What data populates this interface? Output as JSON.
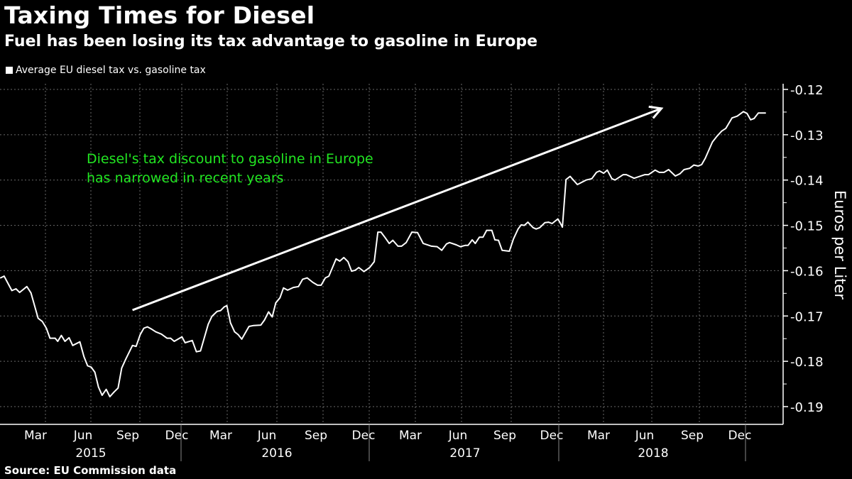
{
  "header": {
    "title": "Taxing Times for Diesel",
    "subtitle": "Fuel has been losing its tax advantage to gasoline in Europe"
  },
  "legend": {
    "label": "Average EU diesel tax vs. gasoline tax",
    "color": "#ffffff"
  },
  "annotation": {
    "lines": [
      "Diesel's tax discount to gasoline in Europe",
      "has narrowed in recent years"
    ],
    "color": "#22e622",
    "arrow": {
      "from": [
        "2015-09-28",
        -0.1687
      ],
      "to": [
        "2018-07-20",
        -0.1242
      ]
    }
  },
  "source": "Source: EU Commission data",
  "chart_data": {
    "type": "line",
    "title": "Taxing Times for Diesel",
    "subtitle": "Fuel has been losing its tax advantage to gasoline in Europe",
    "xlabel": "",
    "ylabel": "Euros per Liter",
    "ylim": [
      -0.19,
      -0.12
    ],
    "xlim": [
      "2015-01-14",
      "2019-03-09"
    ],
    "y_ticks": [
      "-0.12",
      "-0.13",
      "-0.14",
      "-0.15",
      "-0.16",
      "-0.17",
      "-0.18",
      "-0.19"
    ],
    "x_month_ticks": [
      "Mar",
      "Jun",
      "Sep",
      "Dec",
      "Mar",
      "Jun",
      "Sep",
      "Dec",
      "Mar",
      "Jun",
      "Sep",
      "Dec",
      "Mar",
      "Jun",
      "Sep",
      "Dec"
    ],
    "x_year_ticks": [
      "2015",
      "2016",
      "2017",
      "2018"
    ],
    "y_axis_side": "right",
    "grid": true,
    "legend_position": "top-left",
    "line_color": "#ffffff",
    "series": [
      {
        "name": "Average EU diesel tax vs. gasoline tax",
        "x": [
          "2015-01-15",
          "2015-01-22",
          "2015-02-06",
          "2015-02-14",
          "2015-02-21",
          "2015-03-07",
          "2015-03-15",
          "2015-03-29",
          "2015-04-06",
          "2015-04-14",
          "2015-04-21",
          "2015-05-01",
          "2015-05-06",
          "2015-05-13",
          "2015-05-20",
          "2015-05-28",
          "2015-06-04",
          "2015-06-18",
          "2015-06-26",
          "2015-07-03",
          "2015-07-10",
          "2015-07-17",
          "2015-07-24",
          "2015-07-31",
          "2015-08-08",
          "2015-08-15",
          "2015-08-23",
          "2015-08-31",
          "2015-09-07",
          "2015-09-15",
          "2015-09-28",
          "2015-10-05",
          "2015-10-13",
          "2015-10-20",
          "2015-10-27",
          "2015-11-04",
          "2015-11-12",
          "2015-11-23",
          "2015-12-04",
          "2015-12-11",
          "2015-12-18",
          "2016-01-02",
          "2016-01-08",
          "2016-01-22",
          "2016-01-30",
          "2016-02-07",
          "2016-02-22",
          "2016-02-29",
          "2016-03-10",
          "2016-03-17",
          "2016-03-24",
          "2016-03-29",
          "2016-04-05",
          "2016-04-13",
          "2016-04-20",
          "2016-04-27",
          "2016-05-11",
          "2016-05-20",
          "2016-06-03",
          "2016-06-10",
          "2016-06-18",
          "2016-06-25",
          "2016-07-02",
          "2016-07-10",
          "2016-07-17",
          "2016-07-25",
          "2016-08-05",
          "2016-08-15",
          "2016-08-23",
          "2016-09-01",
          "2016-09-12",
          "2016-09-21",
          "2016-09-28",
          "2016-10-06",
          "2016-10-13",
          "2016-10-27",
          "2016-11-03",
          "2016-11-11",
          "2016-11-19",
          "2016-11-26",
          "2016-12-03",
          "2016-12-10",
          "2016-12-20",
          "2016-12-31",
          "2017-01-09",
          "2017-01-16",
          "2017-01-22",
          "2017-01-30",
          "2017-02-07",
          "2017-02-14",
          "2017-02-24",
          "2017-03-03",
          "2017-03-12",
          "2017-03-23",
          "2017-04-03",
          "2017-04-14",
          "2017-04-30",
          "2017-05-11",
          "2017-05-20",
          "2017-05-29",
          "2017-06-04",
          "2017-06-17",
          "2017-06-25",
          "2017-07-05",
          "2017-07-10",
          "2017-07-18",
          "2017-07-24",
          "2017-08-01",
          "2017-08-08",
          "2017-08-15",
          "2017-08-25",
          "2017-08-31",
          "2017-09-07",
          "2017-09-14",
          "2017-09-28",
          "2017-10-06",
          "2017-10-15",
          "2017-10-21",
          "2017-10-27",
          "2017-11-03",
          "2017-11-13",
          "2017-11-19",
          "2017-11-26",
          "2017-12-06",
          "2017-12-13",
          "2017-12-20",
          "2017-12-31",
          "2018-01-04",
          "2018-01-09",
          "2018-01-16",
          "2018-01-24",
          "2018-02-07",
          "2018-02-24",
          "2018-03-07",
          "2018-03-16",
          "2018-03-22",
          "2018-03-30",
          "2018-04-06",
          "2018-04-15",
          "2018-04-21",
          "2018-05-07",
          "2018-05-13",
          "2018-05-28",
          "2018-06-18",
          "2018-06-25",
          "2018-07-08",
          "2018-07-16",
          "2018-07-25",
          "2018-08-03",
          "2018-08-16",
          "2018-08-25",
          "2018-09-02",
          "2018-09-13",
          "2018-09-21",
          "2018-09-29",
          "2018-10-06",
          "2018-10-13",
          "2018-10-27",
          "2018-11-05",
          "2018-11-14",
          "2018-11-22",
          "2018-12-04",
          "2018-12-14",
          "2018-12-26",
          "2019-01-02",
          "2019-01-09",
          "2019-01-16",
          "2019-01-24",
          "2019-02-07"
        ],
        "y": [
          -0.1616,
          -0.1612,
          -0.1644,
          -0.164,
          -0.1648,
          -0.1635,
          -0.1649,
          -0.1705,
          -0.1712,
          -0.1727,
          -0.1749,
          -0.1749,
          -0.1756,
          -0.1743,
          -0.1756,
          -0.1748,
          -0.1765,
          -0.1757,
          -0.179,
          -0.181,
          -0.1813,
          -0.1824,
          -0.1857,
          -0.1875,
          -0.1862,
          -0.1878,
          -0.1868,
          -0.1859,
          -0.1815,
          -0.1795,
          -0.1765,
          -0.1767,
          -0.1741,
          -0.1727,
          -0.1724,
          -0.1729,
          -0.1735,
          -0.174,
          -0.1749,
          -0.1749,
          -0.1756,
          -0.1746,
          -0.1759,
          -0.1754,
          -0.1779,
          -0.1777,
          -0.1718,
          -0.1701,
          -0.169,
          -0.1688,
          -0.168,
          -0.1677,
          -0.1715,
          -0.1735,
          -0.1741,
          -0.1751,
          -0.1723,
          -0.1721,
          -0.172,
          -0.1709,
          -0.1691,
          -0.1702,
          -0.1671,
          -0.166,
          -0.1638,
          -0.1643,
          -0.1637,
          -0.1635,
          -0.1619,
          -0.1616,
          -0.1626,
          -0.1632,
          -0.1632,
          -0.1616,
          -0.1612,
          -0.1574,
          -0.1579,
          -0.1571,
          -0.158,
          -0.1601,
          -0.1599,
          -0.1593,
          -0.1602,
          -0.1593,
          -0.158,
          -0.1515,
          -0.1515,
          -0.1527,
          -0.154,
          -0.1533,
          -0.1546,
          -0.1546,
          -0.1538,
          -0.1515,
          -0.1516,
          -0.154,
          -0.1546,
          -0.1547,
          -0.1555,
          -0.1541,
          -0.1538,
          -0.1543,
          -0.1547,
          -0.1544,
          -0.1544,
          -0.1532,
          -0.154,
          -0.1526,
          -0.1526,
          -0.1511,
          -0.1511,
          -0.1532,
          -0.1533,
          -0.1555,
          -0.1557,
          -0.153,
          -0.1508,
          -0.1499,
          -0.15,
          -0.1493,
          -0.1505,
          -0.1508,
          -0.1505,
          -0.1494,
          -0.1493,
          -0.1496,
          -0.1486,
          -0.1493,
          -0.1504,
          -0.1399,
          -0.1392,
          -0.141,
          -0.14,
          -0.1397,
          -0.1383,
          -0.138,
          -0.1385,
          -0.1378,
          -0.1397,
          -0.14,
          -0.1388,
          -0.1388,
          -0.1396,
          -0.1388,
          -0.1388,
          -0.1378,
          -0.1383,
          -0.1383,
          -0.1377,
          -0.1391,
          -0.1386,
          -0.1377,
          -0.1374,
          -0.1367,
          -0.1369,
          -0.1366,
          -0.1352,
          -0.1316,
          -0.1303,
          -0.1292,
          -0.1286,
          -0.1263,
          -0.1259,
          -0.1249,
          -0.1253,
          -0.1267,
          -0.1264,
          -0.1252,
          -0.1252
        ]
      }
    ]
  }
}
